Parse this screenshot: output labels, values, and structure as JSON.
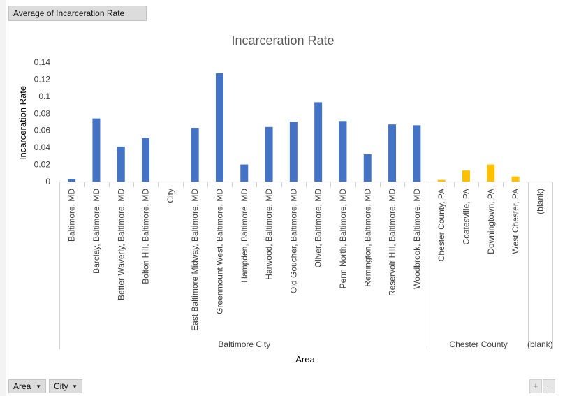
{
  "pivot": {
    "value_field": "Average of Incarceration Rate",
    "filters": [
      {
        "label": "Area"
      },
      {
        "label": "City"
      }
    ]
  },
  "zoom": {
    "plus": "+",
    "minus": "−"
  },
  "chart_data": {
    "type": "bar",
    "title": "Incarceration Rate",
    "xlabel": "Area",
    "ylabel": "Incarceration Rate",
    "ylim": [
      0,
      0.14
    ],
    "y_ticks": [
      "0",
      "0.02",
      "0.04",
      "0.06",
      "0.08",
      "0.1",
      "0.12",
      "0.14"
    ],
    "grid": false,
    "legend": "none",
    "groups": [
      {
        "name": "Baltimore City",
        "color": "#4472c4",
        "categories": [
          "Baltimore, MD",
          "Barclay, Baltimore, MD",
          "Better Waverly, Baltimore, MD",
          "Bolton Hill, Baltimore, MD",
          "City",
          "East Baltimore Midway, Baltimore, MD",
          "Greenmount West, Baltimore, MD",
          "Hampden, Baltimore, MD",
          "Harwood, Baltimore, MD",
          "Old Goucher, Baltimore, MD",
          "Oliver, Baltimore, MD",
          "Penn North, Baltimore, MD",
          "Remington, Baltimore, MD",
          "Reservoir Hill, Baltimore, MD",
          "Woodbrook, Baltimore, MD"
        ],
        "values": [
          0.003,
          0.074,
          0.041,
          0.051,
          0,
          0.063,
          0.127,
          0.02,
          0.064,
          0.07,
          0.093,
          0.071,
          0.032,
          0.067,
          0.066
        ]
      },
      {
        "name": "Chester County",
        "color": "#ffc000",
        "categories": [
          "Chester County, PA",
          "Coatesville, PA",
          "Downingtown, PA",
          "West Chester, PA"
        ],
        "values": [
          0.002,
          0.013,
          0.02,
          0.006
        ]
      },
      {
        "name": "(blank)",
        "color": "#4472c4",
        "categories": [
          "(blank)"
        ],
        "values": [
          0
        ]
      }
    ]
  }
}
